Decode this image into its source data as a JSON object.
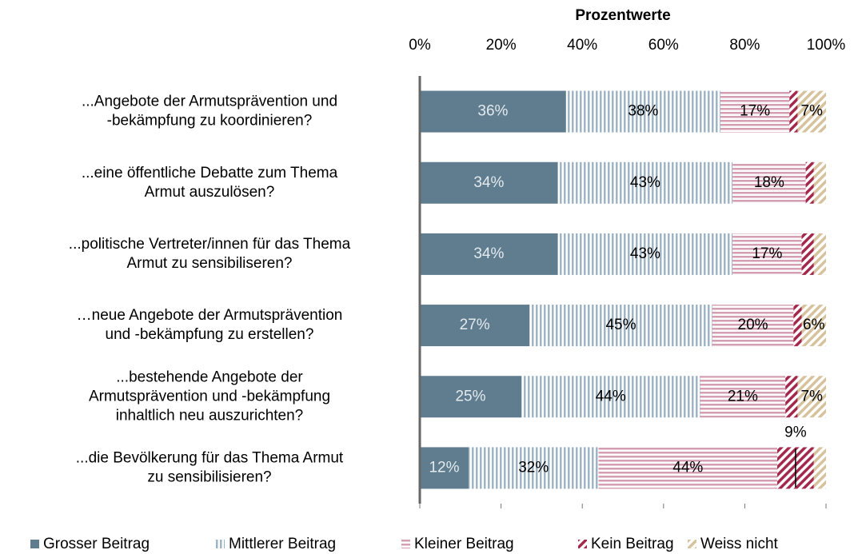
{
  "chart_data": {
    "type": "stacked-bar-horizontal",
    "xlabel": "Prozentwerte",
    "categories": [
      [
        "...Angebote der Armutsprävention und",
        "-bekämpfung zu koordinieren?"
      ],
      [
        "...eine öffentliche Debatte zum Thema",
        "Armut auszulösen?"
      ],
      [
        "...politische Vertreter/innen für das Thema",
        "Armut zu sensibiliseren?"
      ],
      [
        "…neue Angebote der Armutsprävention",
        "und -bekämpfung  zu erstellen?"
      ],
      [
        "...bestehende Angebote der",
        "Armutsprävention und -bekämpfung",
        "inhaltlich neu auszurichten?"
      ],
      [
        "...die Bevölkerung für das Thema Armut",
        "zu sensibilisieren?"
      ]
    ],
    "series": [
      {
        "name": "Grosser Beitrag",
        "color": "#5f7d8f",
        "pattern": "solid",
        "values": [
          36,
          34,
          34,
          27,
          25,
          12
        ],
        "value_labels": [
          "36%",
          "34%",
          "34%",
          "27%",
          "25%",
          "12%"
        ]
      },
      {
        "name": "Mittlerer Beitrag",
        "color": "#9fb4c4",
        "pattern": "vertical",
        "values": [
          38,
          43,
          43,
          45,
          44,
          32
        ],
        "value_labels": [
          "38%",
          "43%",
          "43%",
          "45%",
          "44%",
          "32%"
        ]
      },
      {
        "name": "Kleiner Beitrag",
        "color": "#d49fb2",
        "pattern": "horizontal",
        "values": [
          17,
          18,
          17,
          20,
          21,
          44
        ],
        "value_labels": [
          "17%",
          "18%",
          "17%",
          "20%",
          "21%",
          "44%"
        ]
      },
      {
        "name": "Kein Beitrag",
        "color": "#a3284c",
        "pattern": "diagonal",
        "values": [
          2,
          2,
          3,
          2,
          3,
          9
        ],
        "value_labels": [
          null,
          null,
          null,
          null,
          null,
          "9%"
        ]
      },
      {
        "name": "Weiss nicht",
        "color": "#d6c29c",
        "pattern": "diagonal",
        "values": [
          7,
          3,
          3,
          6,
          7,
          3
        ],
        "value_labels": [
          "7%",
          null,
          null,
          "6%",
          "7%",
          null
        ]
      }
    ],
    "xlim": [
      0,
      100
    ],
    "xticks": [
      {
        "value": 0,
        "label": "0%"
      },
      {
        "value": 20,
        "label": "20%"
      },
      {
        "value": 40,
        "label": "40%"
      },
      {
        "value": 60,
        "label": "60%"
      },
      {
        "value": 80,
        "label": "80%"
      },
      {
        "value": 100,
        "label": "100%"
      }
    ],
    "legend": "bottom"
  }
}
